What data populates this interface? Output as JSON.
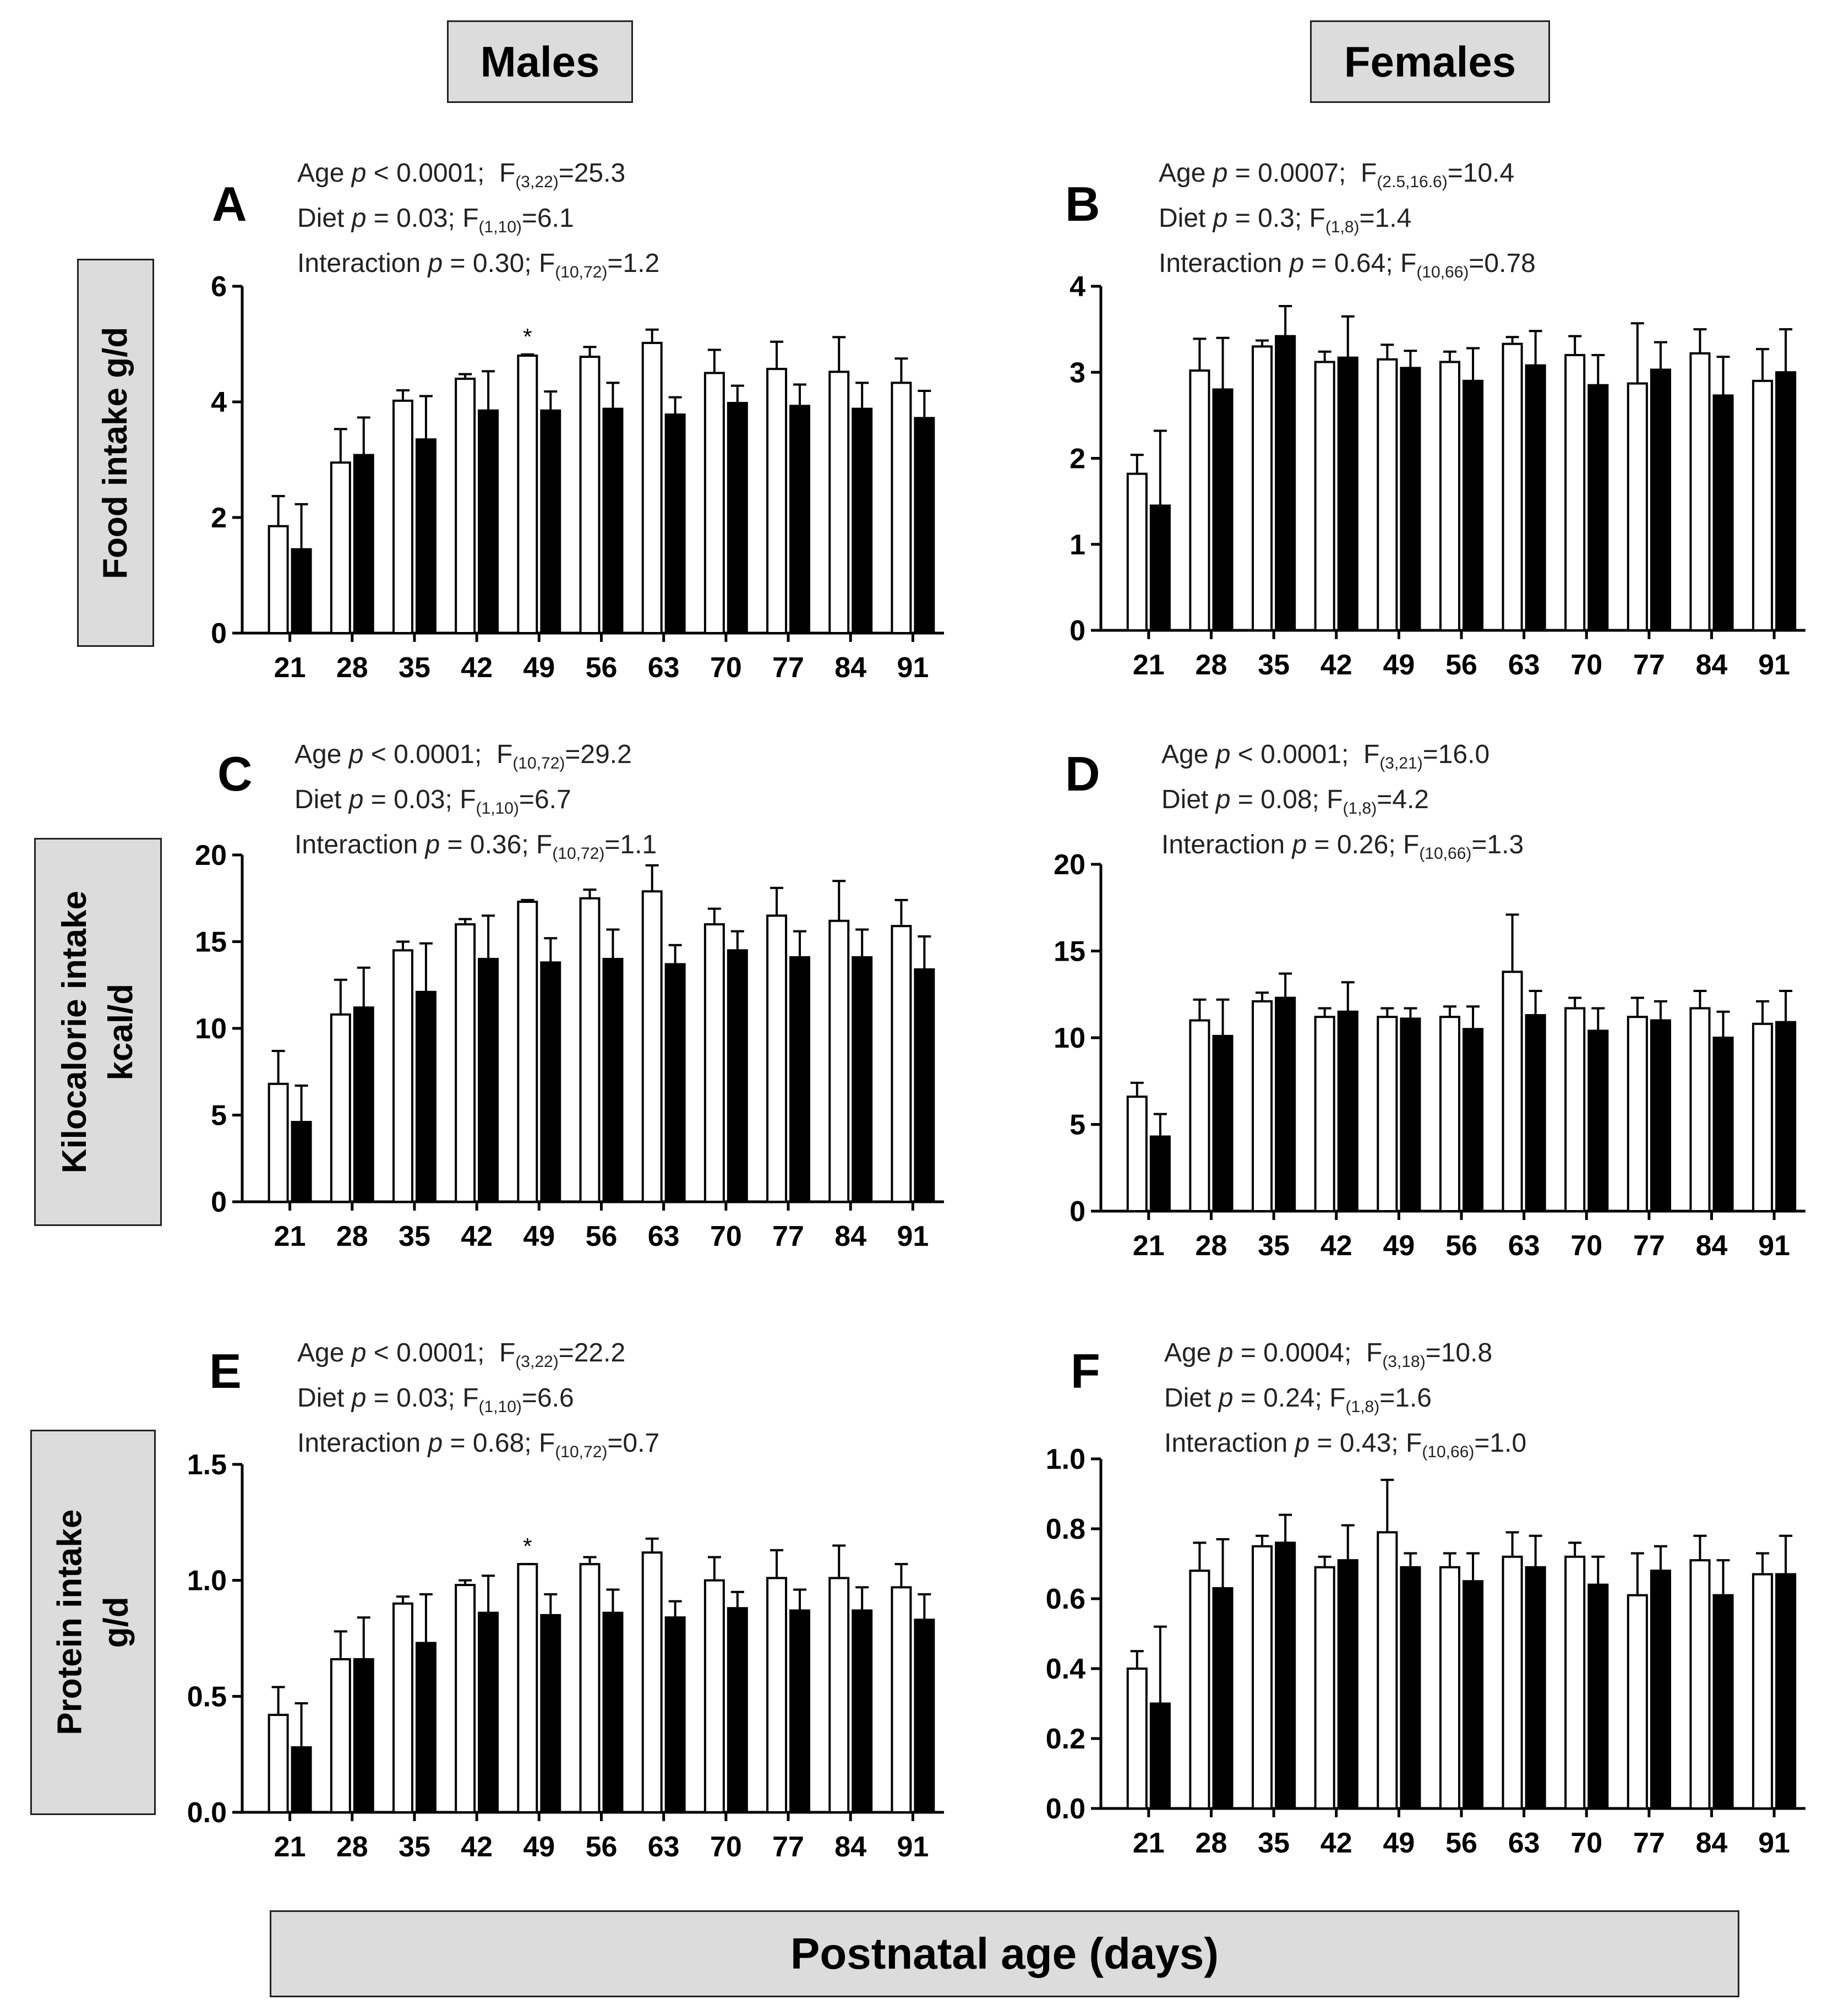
{
  "columns": {
    "left": "Males",
    "right": "Females"
  },
  "row_labels": {
    "food": "Food intake g/d",
    "kcal": [
      "Kilocalorie intake",
      "kcal/d"
    ],
    "protein": [
      "Protein intake",
      "g/d"
    ]
  },
  "x_axis_label": "Postnatal age (days)",
  "colors": {
    "group1_fill": "#ffffff",
    "group2_fill": "#000000",
    "stroke": "#000000",
    "box_fill": "#dcdcdc"
  },
  "chart_data": [
    {
      "panel": "A",
      "type": "bar",
      "sex": "Males",
      "measure": "Food intake g/d",
      "categories": [
        "21",
        "28",
        "35",
        "42",
        "49",
        "56",
        "63",
        "70",
        "77",
        "84",
        "91"
      ],
      "series": [
        {
          "name": "white bars",
          "fill": "white",
          "values": [
            1.85,
            2.95,
            4.02,
            4.4,
            4.8,
            4.78,
            5.02,
            4.5,
            4.57,
            4.52,
            4.33
          ],
          "errors": [
            0.52,
            0.58,
            0.18,
            0.08,
            0.02,
            0.17,
            0.23,
            0.4,
            0.47,
            0.6,
            0.42
          ]
        },
        {
          "name": "black bars",
          "fill": "black",
          "values": [
            1.45,
            3.08,
            3.35,
            3.85,
            3.85,
            3.88,
            3.78,
            3.98,
            3.93,
            3.88,
            3.72
          ],
          "errors": [
            0.78,
            0.65,
            0.75,
            0.68,
            0.33,
            0.45,
            0.3,
            0.3,
            0.37,
            0.45,
            0.47
          ]
        }
      ],
      "ylim": [
        0,
        6
      ],
      "yticks": [
        "0",
        "2",
        "4",
        "6"
      ],
      "significant": [
        "49"
      ],
      "stats": {
        "age_p": "< 0.0001",
        "age_df": "(3,22)",
        "age_f": "25.3",
        "diet_p": "= 0.03",
        "diet_df": "(1,10)",
        "diet_f": "6.1",
        "int_p": "= 0.30",
        "int_df": "(10,72)",
        "int_f": "1.2"
      }
    },
    {
      "panel": "B",
      "type": "bar",
      "sex": "Females",
      "measure": "Food intake g/d",
      "categories": [
        "21",
        "28",
        "35",
        "42",
        "49",
        "56",
        "63",
        "70",
        "77",
        "84",
        "91"
      ],
      "series": [
        {
          "name": "white bars",
          "fill": "white",
          "values": [
            1.82,
            3.02,
            3.3,
            3.12,
            3.15,
            3.12,
            3.33,
            3.2,
            2.87,
            3.22,
            2.9
          ],
          "errors": [
            0.22,
            0.37,
            0.07,
            0.12,
            0.17,
            0.12,
            0.08,
            0.22,
            0.7,
            0.28,
            0.37
          ]
        },
        {
          "name": "black bars",
          "fill": "black",
          "values": [
            1.45,
            2.8,
            3.42,
            3.17,
            3.05,
            2.9,
            3.08,
            2.85,
            3.03,
            2.73,
            3.0
          ],
          "errors": [
            0.87,
            0.6,
            0.35,
            0.48,
            0.2,
            0.38,
            0.4,
            0.35,
            0.32,
            0.45,
            0.5
          ]
        }
      ],
      "ylim": [
        0,
        4
      ],
      "yticks": [
        "0",
        "1",
        "2",
        "3",
        "4"
      ],
      "significant": [],
      "stats": {
        "age_p": "= 0.0007",
        "age_df": "(2.5,16.6)",
        "age_f": "10.4",
        "diet_p": "= 0.3",
        "diet_df": "(1,8)",
        "diet_f": "1.4",
        "int_p": "= 0.64",
        "int_df": "(10,66)",
        "int_f": "0.78"
      }
    },
    {
      "panel": "C",
      "type": "bar",
      "sex": "Males",
      "measure": "Kilocalorie intake kcal/d",
      "categories": [
        "21",
        "28",
        "35",
        "42",
        "49",
        "56",
        "63",
        "70",
        "77",
        "84",
        "91"
      ],
      "series": [
        {
          "name": "white bars",
          "fill": "white",
          "values": [
            6.8,
            10.8,
            14.5,
            16.0,
            17.3,
            17.5,
            17.9,
            16.0,
            16.5,
            16.2,
            15.9
          ],
          "errors": [
            1.9,
            2.0,
            0.5,
            0.3,
            0.1,
            0.5,
            1.5,
            0.9,
            1.6,
            2.3,
            1.5
          ]
        },
        {
          "name": "black bars",
          "fill": "black",
          "values": [
            4.6,
            11.2,
            12.1,
            14.0,
            13.8,
            14.0,
            13.7,
            14.5,
            14.1,
            14.1,
            13.4
          ],
          "errors": [
            2.1,
            2.3,
            2.8,
            2.5,
            1.4,
            1.7,
            1.1,
            1.1,
            1.5,
            1.6,
            1.9
          ]
        }
      ],
      "ylim": [
        0,
        20
      ],
      "yticks": [
        "0",
        "5",
        "10",
        "15",
        "20"
      ],
      "significant": [],
      "stats": {
        "age_p": "< 0.0001",
        "age_df": "(10,72)",
        "age_f": "29.2",
        "diet_p": "= 0.03",
        "diet_df": "(1,10)",
        "diet_f": "6.7",
        "int_p": "= 0.36",
        "int_df": "(10,72)",
        "int_f": "1.1"
      }
    },
    {
      "panel": "D",
      "type": "bar",
      "sex": "Females",
      "measure": "Kilocalorie intake kcal/d",
      "categories": [
        "21",
        "28",
        "35",
        "42",
        "49",
        "56",
        "63",
        "70",
        "77",
        "84",
        "91"
      ],
      "series": [
        {
          "name": "white bars",
          "fill": "white",
          "values": [
            6.6,
            11.0,
            12.1,
            11.2,
            11.2,
            11.2,
            13.8,
            11.7,
            11.2,
            11.7,
            10.8
          ],
          "errors": [
            0.8,
            1.2,
            0.5,
            0.5,
            0.5,
            0.6,
            3.3,
            0.6,
            1.1,
            1.0,
            1.3
          ]
        },
        {
          "name": "black bars",
          "fill": "black",
          "values": [
            4.3,
            10.1,
            12.3,
            11.5,
            11.1,
            10.5,
            11.3,
            10.4,
            11.0,
            10.0,
            10.9
          ],
          "errors": [
            1.3,
            2.1,
            1.4,
            1.7,
            0.6,
            1.3,
            1.4,
            1.3,
            1.1,
            1.5,
            1.8
          ]
        }
      ],
      "ylim": [
        0,
        20
      ],
      "yticks": [
        "0",
        "5",
        "10",
        "15",
        "20"
      ],
      "significant": [],
      "stats": {
        "age_p": "< 0.0001",
        "age_df": "(3,21)",
        "age_f": "16.0",
        "diet_p": "= 0.08",
        "diet_df": "(1,8)",
        "diet_f": "4.2",
        "int_p": "= 0.26",
        "int_df": "(10,66)",
        "int_f": "1.3"
      }
    },
    {
      "panel": "E",
      "type": "bar",
      "sex": "Males",
      "measure": "Protein intake g/d",
      "categories": [
        "21",
        "28",
        "35",
        "42",
        "49",
        "56",
        "63",
        "70",
        "77",
        "84",
        "91"
      ],
      "series": [
        {
          "name": "white bars",
          "fill": "white",
          "values": [
            0.42,
            0.66,
            0.9,
            0.98,
            1.07,
            1.07,
            1.12,
            1.0,
            1.01,
            1.01,
            0.97
          ],
          "errors": [
            0.12,
            0.12,
            0.03,
            0.02,
            0.0,
            0.03,
            0.06,
            0.1,
            0.12,
            0.14,
            0.1
          ]
        },
        {
          "name": "black bars",
          "fill": "black",
          "values": [
            0.28,
            0.66,
            0.73,
            0.86,
            0.85,
            0.86,
            0.84,
            0.88,
            0.87,
            0.87,
            0.83
          ],
          "errors": [
            0.19,
            0.18,
            0.21,
            0.16,
            0.09,
            0.1,
            0.07,
            0.07,
            0.09,
            0.1,
            0.11
          ]
        }
      ],
      "ylim": [
        0,
        1.5
      ],
      "yticks": [
        "0.0",
        "0.5",
        "1.0",
        "1.5"
      ],
      "significant": [
        "49"
      ],
      "stats": {
        "age_p": "< 0.0001",
        "age_df": "(3,22)",
        "age_f": "22.2",
        "diet_p": "= 0.03",
        "diet_df": "(1,10)",
        "diet_f": "6.6",
        "int_p": "= 0.68",
        "int_df": "(10,72)",
        "int_f": "0.7"
      }
    },
    {
      "panel": "F",
      "type": "bar",
      "sex": "Females",
      "measure": "Protein intake g/d",
      "categories": [
        "21",
        "28",
        "35",
        "42",
        "49",
        "56",
        "63",
        "70",
        "77",
        "84",
        "91"
      ],
      "series": [
        {
          "name": "white bars",
          "fill": "white",
          "values": [
            0.4,
            0.68,
            0.75,
            0.69,
            0.79,
            0.69,
            0.72,
            0.72,
            0.61,
            0.71,
            0.67
          ],
          "errors": [
            0.05,
            0.08,
            0.03,
            0.03,
            0.15,
            0.04,
            0.07,
            0.04,
            0.12,
            0.07,
            0.06
          ]
        },
        {
          "name": "black bars",
          "fill": "black",
          "values": [
            0.3,
            0.63,
            0.76,
            0.71,
            0.69,
            0.65,
            0.69,
            0.64,
            0.68,
            0.61,
            0.67
          ],
          "errors": [
            0.22,
            0.14,
            0.08,
            0.1,
            0.04,
            0.08,
            0.09,
            0.08,
            0.07,
            0.1,
            0.11
          ]
        }
      ],
      "ylim": [
        0,
        1.0
      ],
      "yticks": [
        "0.0",
        "0.2",
        "0.4",
        "0.6",
        "0.8",
        "1.0"
      ],
      "significant": [],
      "stats": {
        "age_p": "= 0.0004",
        "age_df": "(3,18)",
        "age_f": "10.8",
        "diet_p": "= 0.24",
        "diet_df": "(1,8)",
        "diet_f": "1.6",
        "int_p": "= 0.43",
        "int_df": "(10,66)",
        "int_f": "1.0"
      }
    }
  ]
}
